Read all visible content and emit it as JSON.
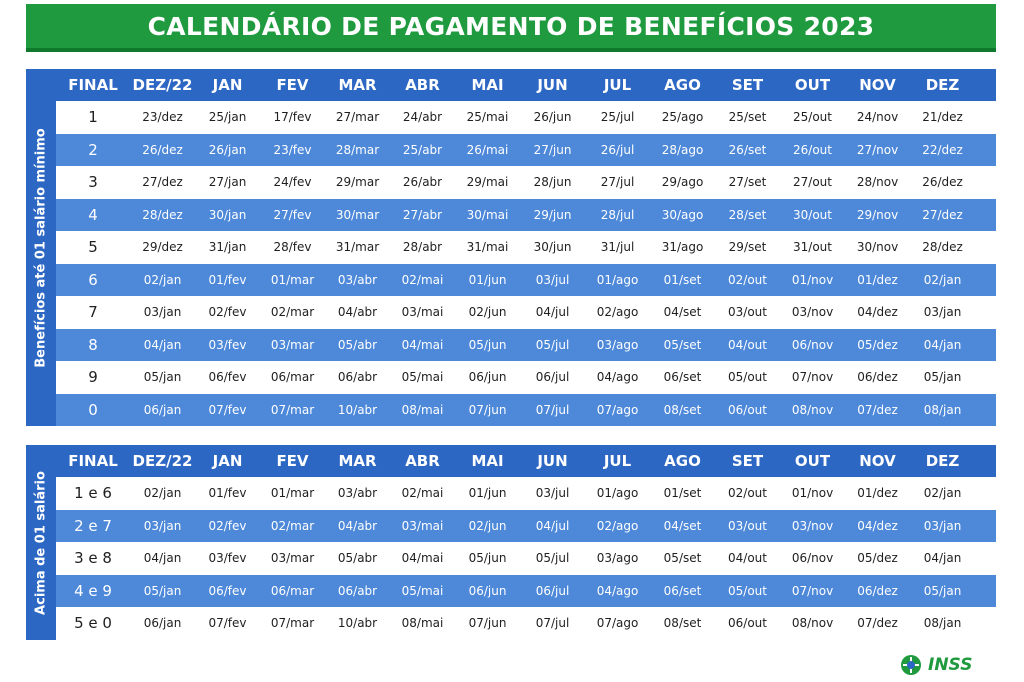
{
  "title": "CALENDÁRIO DE PAGAMENTO DE BENEFÍCIOS 2023",
  "headers": [
    "FINAL",
    "DEZ/22",
    "JAN",
    "FEV",
    "MAR",
    "ABR",
    "MAI",
    "JUN",
    "JUL",
    "AGO",
    "SET",
    "OUT",
    "NOV",
    "DEZ"
  ],
  "section1": {
    "label": "Benefícios até 01 salário mínimo",
    "rows": [
      [
        "1",
        "23/dez",
        "25/jan",
        "17/fev",
        "27/mar",
        "24/abr",
        "25/mai",
        "26/jun",
        "25/jul",
        "25/ago",
        "25/set",
        "25/out",
        "24/nov",
        "21/dez"
      ],
      [
        "2",
        "26/dez",
        "26/jan",
        "23/fev",
        "28/mar",
        "25/abr",
        "26/mai",
        "27/jun",
        "26/jul",
        "28/ago",
        "26/set",
        "26/out",
        "27/nov",
        "22/dez"
      ],
      [
        "3",
        "27/dez",
        "27/jan",
        "24/fev",
        "29/mar",
        "26/abr",
        "29/mai",
        "28/jun",
        "27/jul",
        "29/ago",
        "27/set",
        "27/out",
        "28/nov",
        "26/dez"
      ],
      [
        "4",
        "28/dez",
        "30/jan",
        "27/fev",
        "30/mar",
        "27/abr",
        "30/mai",
        "29/jun",
        "28/jul",
        "30/ago",
        "28/set",
        "30/out",
        "29/nov",
        "27/dez"
      ],
      [
        "5",
        "29/dez",
        "31/jan",
        "28/fev",
        "31/mar",
        "28/abr",
        "31/mai",
        "30/jun",
        "31/jul",
        "31/ago",
        "29/set",
        "31/out",
        "30/nov",
        "28/dez"
      ],
      [
        "6",
        "02/jan",
        "01/fev",
        "01/mar",
        "03/abr",
        "02/mai",
        "01/jun",
        "03/jul",
        "01/ago",
        "01/set",
        "02/out",
        "01/nov",
        "01/dez",
        "02/jan"
      ],
      [
        "7",
        "03/jan",
        "02/fev",
        "02/mar",
        "04/abr",
        "03/mai",
        "02/jun",
        "04/jul",
        "02/ago",
        "04/set",
        "03/out",
        "03/nov",
        "04/dez",
        "03/jan"
      ],
      [
        "8",
        "04/jan",
        "03/fev",
        "03/mar",
        "05/abr",
        "04/mai",
        "05/jun",
        "05/jul",
        "03/ago",
        "05/set",
        "04/out",
        "06/nov",
        "05/dez",
        "04/jan"
      ],
      [
        "9",
        "05/jan",
        "06/fev",
        "06/mar",
        "06/abr",
        "05/mai",
        "06/jun",
        "06/jul",
        "04/ago",
        "06/set",
        "05/out",
        "07/nov",
        "06/dez",
        "05/jan"
      ],
      [
        "0",
        "06/jan",
        "07/fev",
        "07/mar",
        "10/abr",
        "08/mai",
        "07/jun",
        "07/jul",
        "07/ago",
        "08/set",
        "06/out",
        "08/nov",
        "07/dez",
        "08/jan"
      ]
    ]
  },
  "section2": {
    "label": "Acima de 01 salário",
    "rows": [
      [
        "1 e 6",
        "02/jan",
        "01/fev",
        "01/mar",
        "03/abr",
        "02/mai",
        "01/jun",
        "03/jul",
        "01/ago",
        "01/set",
        "02/out",
        "01/nov",
        "01/dez",
        "02/jan"
      ],
      [
        "2 e 7",
        "03/jan",
        "02/fev",
        "02/mar",
        "04/abr",
        "03/mai",
        "02/jun",
        "04/jul",
        "02/ago",
        "04/set",
        "03/out",
        "03/nov",
        "04/dez",
        "03/jan"
      ],
      [
        "3 e 8",
        "04/jan",
        "03/fev",
        "03/mar",
        "05/abr",
        "04/mai",
        "05/jun",
        "05/jul",
        "03/ago",
        "05/set",
        "04/out",
        "06/nov",
        "05/dez",
        "04/jan"
      ],
      [
        "4 e 9",
        "05/jan",
        "06/fev",
        "06/mar",
        "06/abr",
        "05/mai",
        "06/jun",
        "06/jul",
        "04/ago",
        "06/set",
        "05/out",
        "07/nov",
        "06/dez",
        "05/jan"
      ],
      [
        "5 e 0",
        "06/jan",
        "07/fev",
        "07/mar",
        "10/abr",
        "08/mai",
        "07/jun",
        "07/jul",
        "07/ago",
        "08/set",
        "06/out",
        "08/nov",
        "07/dez",
        "08/jan"
      ]
    ]
  },
  "logo_text": "INSS",
  "colors": {
    "green": "#1f9a3f",
    "blue_header": "#2c67c4",
    "blue_row": "#4d88d9"
  }
}
